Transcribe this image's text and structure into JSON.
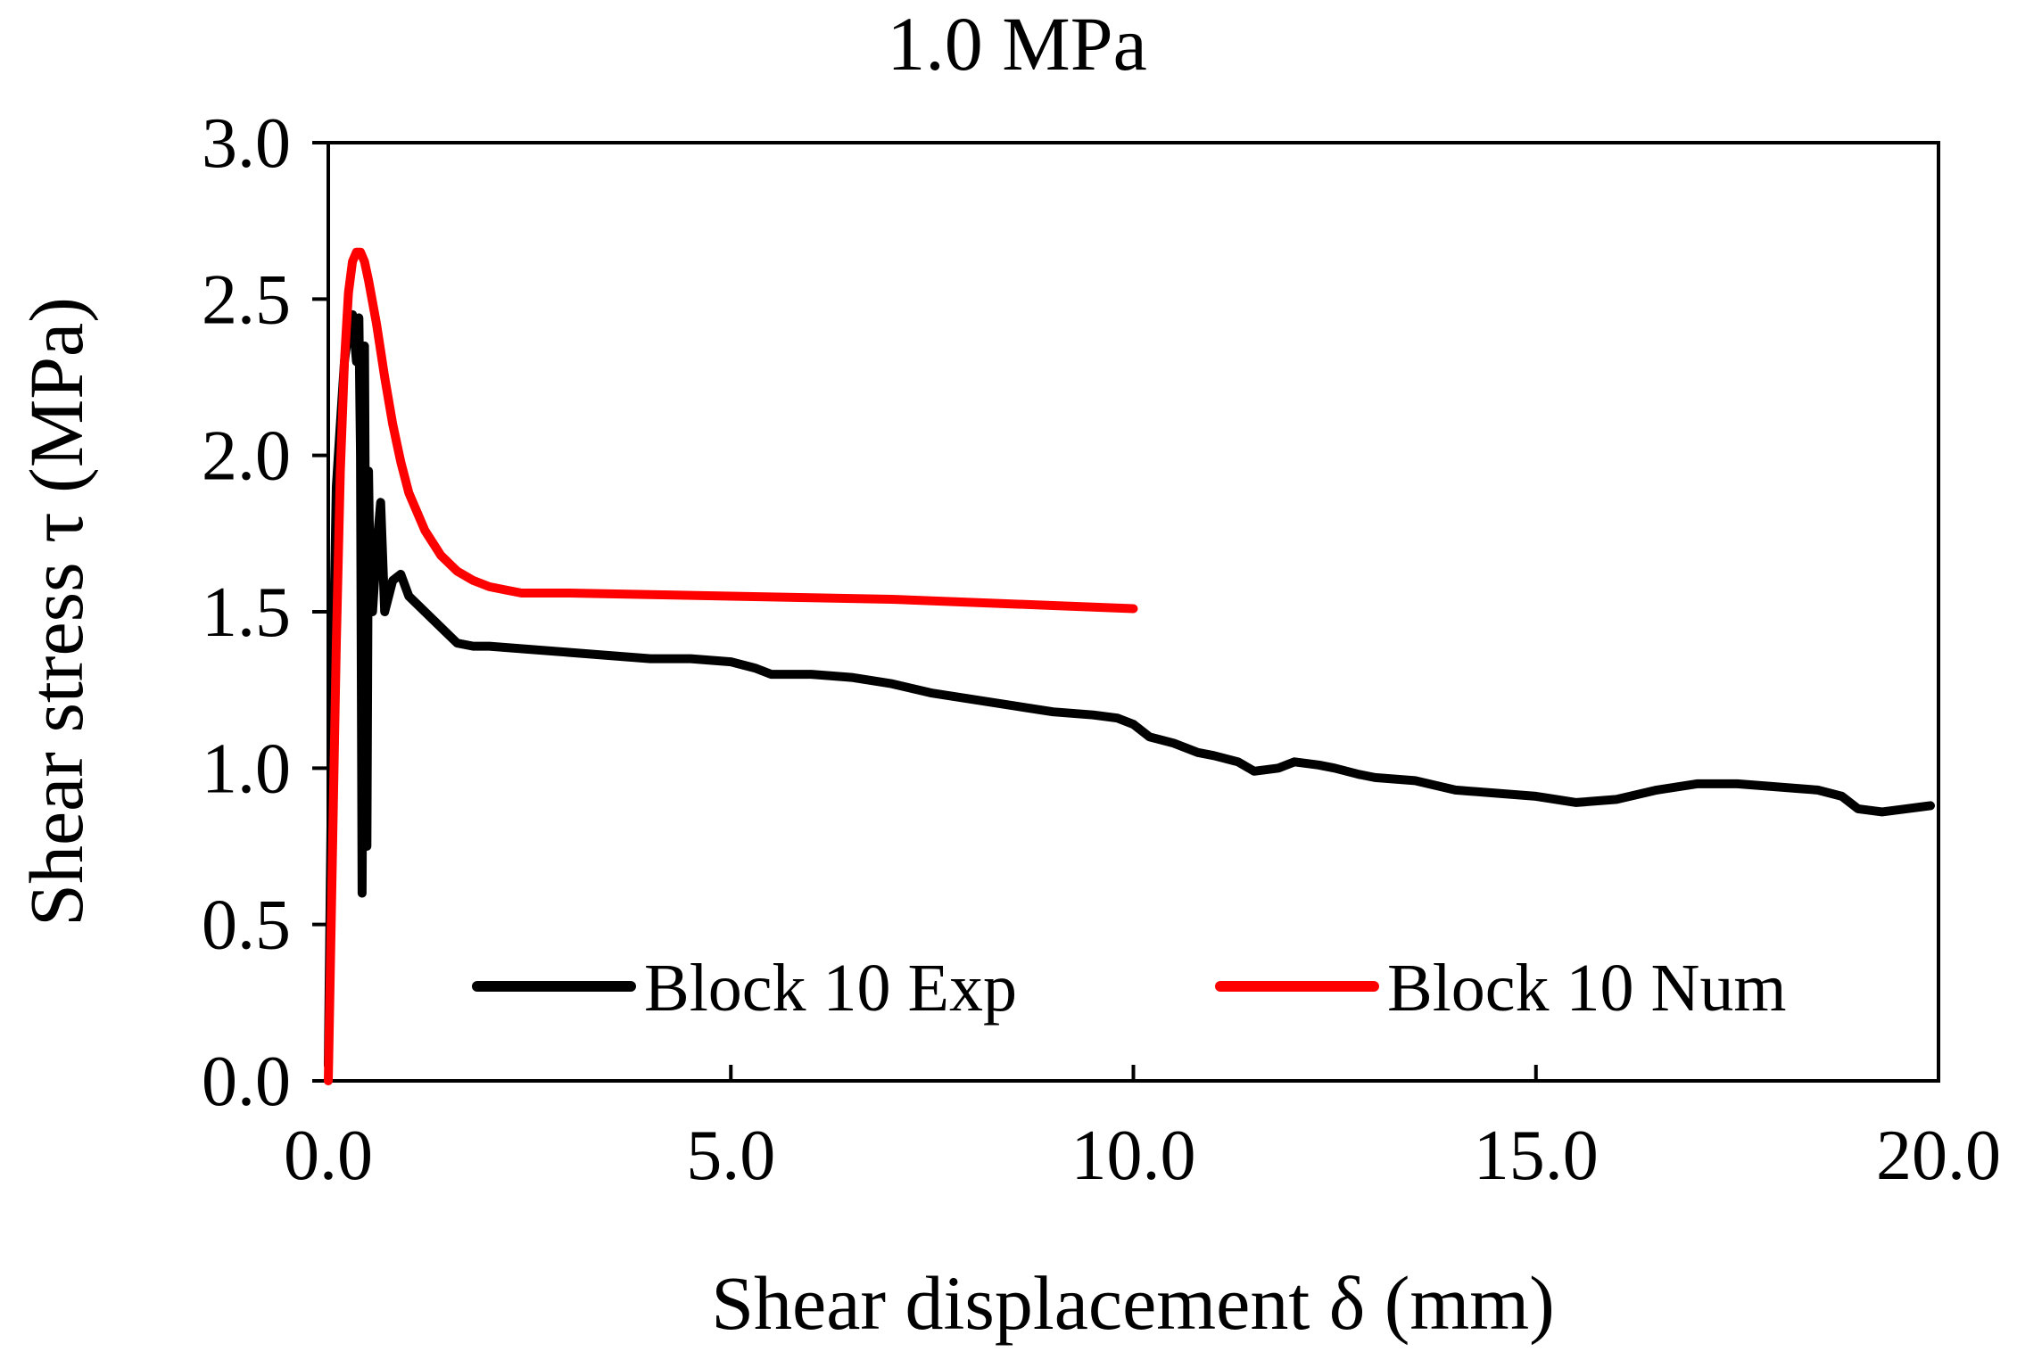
{
  "chart_data": {
    "type": "line",
    "title": "1.0 MPa",
    "xlabel": "Shear displacement δ (mm)",
    "ylabel": "Shear stress τ (MPa)",
    "xlim": [
      0,
      20
    ],
    "ylim": [
      0,
      3
    ],
    "xticks": [
      0,
      5,
      10,
      15,
      20
    ],
    "yticks": [
      0,
      0.5,
      1,
      1.5,
      2,
      2.5,
      3
    ],
    "xtick_labels": [
      "0.0",
      "5.0",
      "10.0",
      "15.0",
      "20.0"
    ],
    "ytick_labels": [
      "0.0",
      "0.5",
      "1.0",
      "1.5",
      "2.0",
      "2.5",
      "3.0"
    ],
    "grid": false,
    "legend_position": "bottom-center inside",
    "series": [
      {
        "name": "Block 10 Exp",
        "color": "#000000",
        "x": [
          0,
          0.05,
          0.1,
          0.15,
          0.2,
          0.25,
          0.3,
          0.35,
          0.38,
          0.4,
          0.42,
          0.45,
          0.48,
          0.5,
          0.52,
          0.55,
          0.6,
          0.65,
          0.7,
          0.75,
          0.8,
          0.9,
          1.0,
          1.2,
          1.4,
          1.6,
          1.8,
          2.0,
          2.5,
          3.0,
          3.5,
          4.0,
          4.5,
          5.0,
          5.3,
          5.5,
          6.0,
          6.5,
          7.0,
          7.5,
          8.0,
          8.5,
          9.0,
          9.5,
          9.8,
          10.0,
          10.2,
          10.5,
          10.8,
          11.0,
          11.3,
          11.5,
          11.8,
          12.0,
          12.3,
          12.5,
          12.8,
          13.0,
          13.5,
          14.0,
          14.5,
          15.0,
          15.5,
          16.0,
          16.5,
          17.0,
          17.5,
          18.0,
          18.5,
          18.8,
          19.0,
          19.3,
          19.6,
          19.9
        ],
        "y": [
          0.05,
          1.2,
          1.9,
          2.1,
          2.3,
          2.4,
          2.45,
          2.3,
          2.44,
          2.0,
          0.6,
          2.35,
          0.75,
          1.95,
          1.6,
          1.5,
          1.7,
          1.85,
          1.5,
          1.55,
          1.6,
          1.62,
          1.55,
          1.5,
          1.45,
          1.4,
          1.39,
          1.39,
          1.38,
          1.37,
          1.36,
          1.35,
          1.35,
          1.34,
          1.32,
          1.3,
          1.3,
          1.29,
          1.27,
          1.24,
          1.22,
          1.2,
          1.18,
          1.17,
          1.16,
          1.14,
          1.1,
          1.08,
          1.05,
          1.04,
          1.02,
          0.99,
          1.0,
          1.02,
          1.01,
          1.0,
          0.98,
          0.97,
          0.96,
          0.93,
          0.92,
          0.91,
          0.89,
          0.9,
          0.93,
          0.95,
          0.95,
          0.94,
          0.93,
          0.91,
          0.87,
          0.86,
          0.87,
          0.88
        ]
      },
      {
        "name": "Block 10 Num",
        "color": "#ff0000",
        "x": [
          0,
          0.05,
          0.1,
          0.15,
          0.2,
          0.25,
          0.3,
          0.35,
          0.4,
          0.45,
          0.5,
          0.6,
          0.7,
          0.8,
          0.9,
          1.0,
          1.2,
          1.4,
          1.6,
          1.8,
          2.0,
          2.2,
          2.4,
          3.0,
          4.0,
          5.0,
          6.0,
          7.0,
          8.0,
          9.0,
          10.0
        ],
        "y": [
          0.0,
          0.7,
          1.4,
          1.95,
          2.3,
          2.52,
          2.62,
          2.65,
          2.65,
          2.62,
          2.56,
          2.42,
          2.25,
          2.1,
          1.98,
          1.88,
          1.76,
          1.68,
          1.63,
          1.6,
          1.58,
          1.57,
          1.56,
          1.56,
          1.555,
          1.55,
          1.545,
          1.54,
          1.53,
          1.52,
          1.51
        ]
      }
    ]
  }
}
